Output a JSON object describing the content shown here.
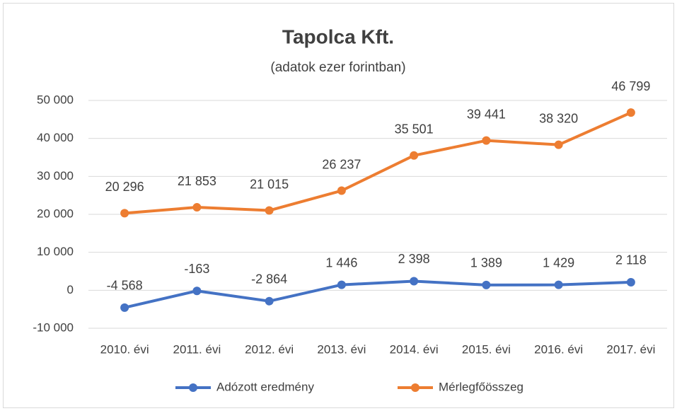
{
  "chart_data": {
    "type": "line",
    "title": "Tapolca Kft.",
    "subtitle": "(adatok ezer forintban)",
    "categories": [
      "2010. évi",
      "2011. évi",
      "2012. évi",
      "2013. évi",
      "2014. évi",
      "2015. évi",
      "2016. évi",
      "2017. évi"
    ],
    "series": [
      {
        "name": "Adózott eredmény",
        "color": "#4472c4",
        "values": [
          -4568,
          -163,
          -2864,
          1446,
          2398,
          1389,
          1429,
          2118
        ],
        "value_labels": [
          "-4 568",
          "-163",
          "-2 864",
          "1 446",
          "2 398",
          "1 389",
          "1 429",
          "2 118"
        ]
      },
      {
        "name": "Mérlegfőösszeg",
        "color": "#ed7d31",
        "values": [
          20296,
          21853,
          21015,
          26237,
          35501,
          39441,
          38320,
          46799
        ],
        "value_labels": [
          "20 296",
          "21 853",
          "21 015",
          "26 237",
          "35 501",
          "39 441",
          "38 320",
          "46 799"
        ]
      }
    ],
    "ylim": [
      -10000,
      50000
    ],
    "yticks": [
      {
        "value": -10000,
        "label": "-10 000"
      },
      0,
      {
        "value": 10000,
        "label": "10 000"
      },
      {
        "value": 20000,
        "label": "20 000"
      },
      {
        "value": 30000,
        "label": "30 000"
      },
      {
        "value": 40000,
        "label": "40 000"
      },
      {
        "value": 50000,
        "label": "50 000"
      }
    ],
    "grid": true,
    "legend": "bottom"
  }
}
